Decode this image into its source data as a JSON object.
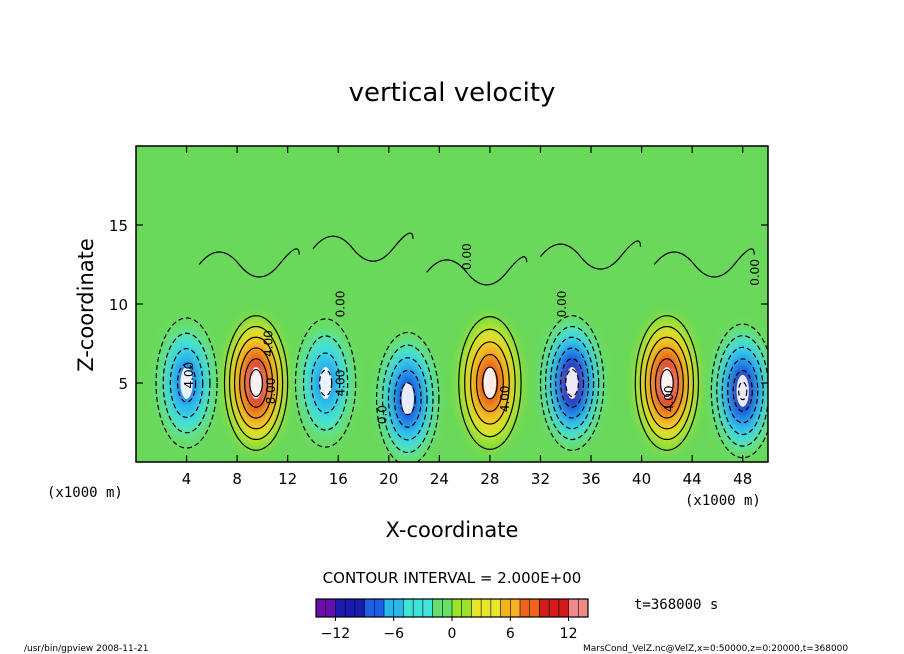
{
  "chart_data": {
    "type": "heatmap",
    "title": "vertical velocity",
    "xlabel": "X-coordinate",
    "ylabel": "Z-coordinate",
    "x_unit": "(x1000 m)",
    "xlim": [
      0,
      50
    ],
    "ylim": [
      0,
      20
    ],
    "x_ticks": [
      4,
      8,
      12,
      16,
      20,
      24,
      28,
      32,
      36,
      40,
      44,
      48
    ],
    "y_ticks": [
      5,
      10,
      15
    ],
    "contour_interval_text": "CONTOUR INTERVAL = 2.000E+00",
    "time_text": "t=368000 s",
    "colorbar": {
      "min": -14,
      "max": 14,
      "ticks": [
        -12,
        -6,
        0,
        6,
        12
      ],
      "tick_labels": [
        "−12",
        "−6",
        "0",
        "6",
        "12"
      ],
      "colors": [
        "#6a0dad",
        "#1b1bb0",
        "#1f5ee8",
        "#2ab4f0",
        "#3fe3d8",
        "#66e06a",
        "#9be22a",
        "#e8e52a",
        "#f6b021",
        "#f0631c",
        "#d41b1b",
        "#f08a8a"
      ]
    },
    "cells": [
      {
        "x": 4,
        "z": 5,
        "w": -9
      },
      {
        "x": 9.5,
        "z": 5,
        "w": 13
      },
      {
        "x": 15,
        "z": 5,
        "w": -8
      },
      {
        "x": 21.5,
        "z": 4,
        "w": -11
      },
      {
        "x": 28,
        "z": 5,
        "w": 11
      },
      {
        "x": 34.5,
        "z": 5,
        "w": -13
      },
      {
        "x": 42,
        "z": 5,
        "w": 13
      },
      {
        "x": 48,
        "z": 4.5,
        "w": -12
      }
    ],
    "contour_labels": [
      {
        "x": 4.5,
        "z": 5.5,
        "text": "4.00"
      },
      {
        "x": 10.8,
        "z": 7.5,
        "text": "4.00"
      },
      {
        "x": 11,
        "z": 4.5,
        "text": "8.00"
      },
      {
        "x": 16.5,
        "z": 5,
        "text": "4.00"
      },
      {
        "x": 16.5,
        "z": 10,
        "text": "0.00"
      },
      {
        "x": 19.8,
        "z": 3,
        "text": "0.0"
      },
      {
        "x": 26.5,
        "z": 13,
        "text": "0.00"
      },
      {
        "x": 29.5,
        "z": 4,
        "text": "4.00"
      },
      {
        "x": 34,
        "z": 10,
        "text": "0.00"
      },
      {
        "x": 42.5,
        "z": 4,
        "text": "4.00"
      },
      {
        "x": 49.3,
        "z": 12,
        "text": "0.00"
      }
    ],
    "legend": "none",
    "grid": false
  },
  "footer": {
    "left": "/usr/bin/gpview   2008-11-21",
    "right": "MarsCond_VelZ.nc@VelZ,x=0:50000,z=0:20000,t=368000"
  }
}
